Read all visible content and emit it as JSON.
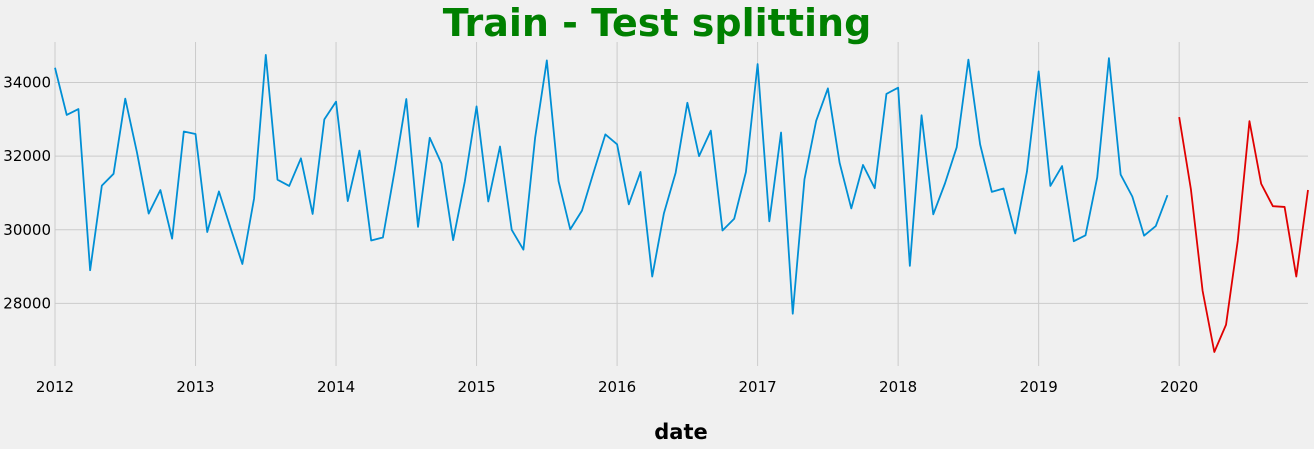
{
  "chart_data": {
    "type": "line",
    "title": "Train - Test splitting",
    "title_color": "#008000",
    "xlabel": "date",
    "ylabel": "",
    "x_unit": "month",
    "xlim": [
      "2012-01",
      "2020-12"
    ],
    "ylim": [
      26300,
      35100
    ],
    "grid": true,
    "x_ticks": [
      {
        "value": "2012-01",
        "label": "2012"
      },
      {
        "value": "2013-01",
        "label": "2013"
      },
      {
        "value": "2014-01",
        "label": "2014"
      },
      {
        "value": "2015-01",
        "label": "2015"
      },
      {
        "value": "2016-01",
        "label": "2016"
      },
      {
        "value": "2017-01",
        "label": "2017"
      },
      {
        "value": "2018-01",
        "label": "2018"
      },
      {
        "value": "2019-01",
        "label": "2019"
      },
      {
        "value": "2020-01",
        "label": "2020"
      }
    ],
    "y_ticks": [
      {
        "value": 28000,
        "label": "28000"
      },
      {
        "value": 30000,
        "label": "30000"
      },
      {
        "value": 32000,
        "label": "32000"
      },
      {
        "value": 34000,
        "label": "34000"
      }
    ],
    "series": [
      {
        "color": "#008fd5",
        "start": "2012-01",
        "values": [
          34400,
          33120,
          33280,
          28900,
          31200,
          31520,
          33560,
          32100,
          30440,
          31080,
          29760,
          32670,
          32600,
          29940,
          31040,
          30040,
          29070,
          30850,
          34750,
          31360,
          31190,
          31940,
          30430,
          33000,
          33480,
          30780,
          32150,
          29710,
          29790,
          31600,
          33550,
          30080,
          32500,
          31800,
          29720,
          31320,
          33350,
          30770,
          32260,
          30000,
          29460,
          32500,
          34600,
          31320,
          30010,
          30520,
          31570,
          32590,
          32320,
          30690,
          31570,
          28730,
          30450,
          31550,
          33450,
          32000,
          32690,
          29980,
          30300,
          31570,
          34500,
          30230,
          32640,
          27720,
          31370,
          32960,
          33840,
          31820,
          30580,
          31760,
          31130,
          33690,
          33860,
          29020,
          33110,
          30420,
          31260,
          32240,
          34620,
          32320,
          31030,
          31120,
          29900,
          31580,
          34300,
          31190,
          31730,
          29690,
          29850,
          31420,
          34660,
          31500,
          30900,
          29840,
          30100,
          30940
        ]
      },
      {
        "color": "#e00000",
        "start": "2020-01",
        "values": [
          33060,
          31100,
          28340,
          26680,
          27420,
          29700,
          32950,
          31250,
          30640,
          30620,
          28730,
          31080
        ]
      }
    ]
  }
}
